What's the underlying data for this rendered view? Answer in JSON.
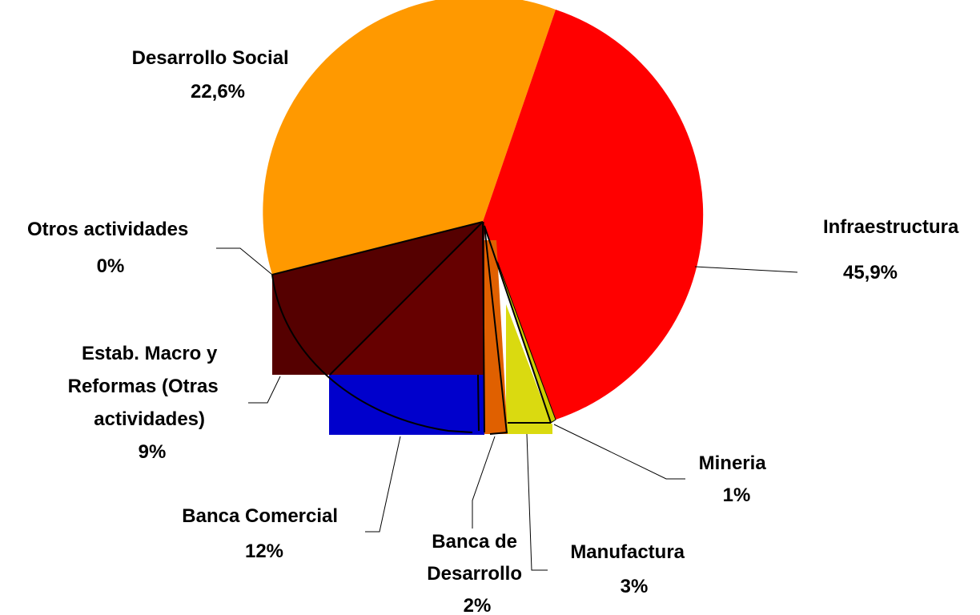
{
  "chart_data": {
    "type": "pie",
    "title": "",
    "unit": "%",
    "slices": [
      {
        "label": "Infraestructura",
        "value_text": "45,9%",
        "value": 45.9,
        "color": "#FF0000"
      },
      {
        "label": "Mineria",
        "value_text": "1%",
        "value": 1,
        "color": "#CCCC00"
      },
      {
        "label": "Manufactura",
        "value_text": "3%",
        "value": 3,
        "color": "#DADA10"
      },
      {
        "label": "Banca de Desarrollo",
        "value_text": "2%",
        "value": 2,
        "color": "#E06000"
      },
      {
        "label": "Banca Comercial",
        "value_text": "12%",
        "value": 12,
        "color": "#0000CC"
      },
      {
        "label": "Estab. Macro y Reformas (Otras actividades)",
        "value_text": "9%",
        "value": 9,
        "color": "#660000"
      },
      {
        "label": "Otros actividades",
        "value_text": "0%",
        "value": 0,
        "color": "#550000"
      },
      {
        "label": "Desarrollo Social",
        "value_text": "22,6%",
        "value": 22.6,
        "color": "#FF9900"
      }
    ],
    "legend": "none"
  }
}
